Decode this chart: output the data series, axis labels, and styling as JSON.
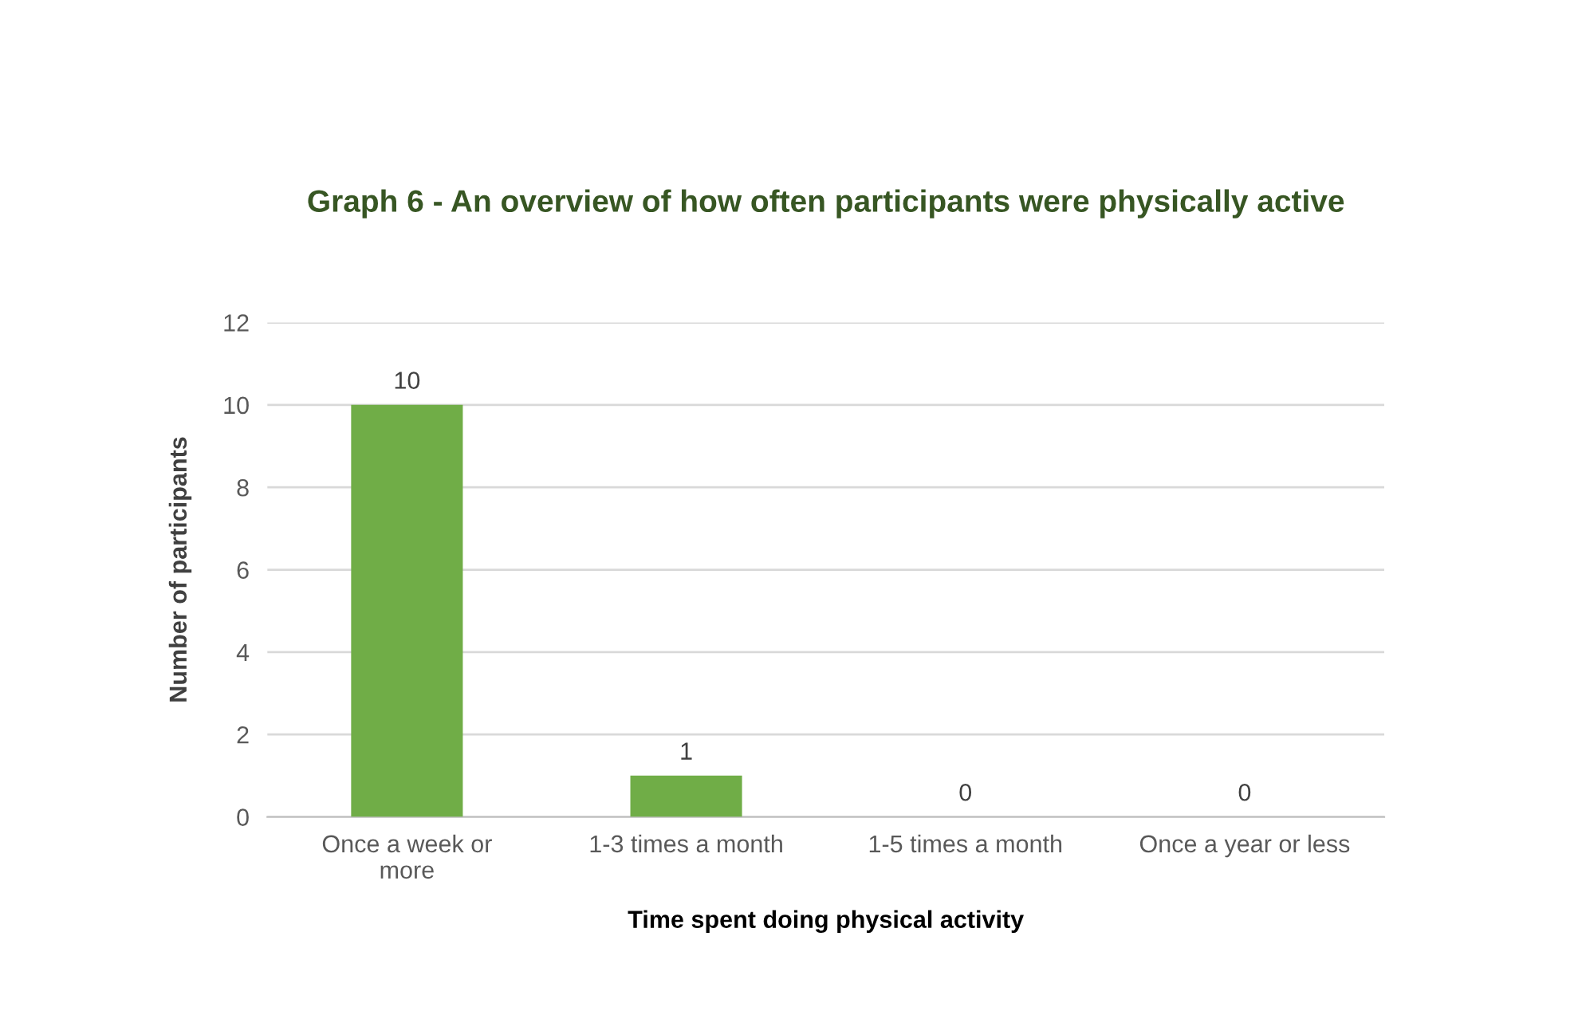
{
  "chart_data": {
    "type": "bar",
    "title": "Graph 6 - An overview of how often participants were physically active",
    "xlabel": "Time spent doing physical activity",
    "ylabel": "Number of participants",
    "categories": [
      "Once a week or\nmore",
      "1-3 times a month",
      "1-5 times a month",
      "Once a year or less"
    ],
    "values": [
      10,
      1,
      0,
      0
    ],
    "color": "#70ad47",
    "ylim": [
      0,
      12
    ],
    "yticks": [
      0,
      2,
      4,
      6,
      8,
      10,
      12
    ],
    "grid": "y",
    "data_labels": true,
    "legend": false
  }
}
